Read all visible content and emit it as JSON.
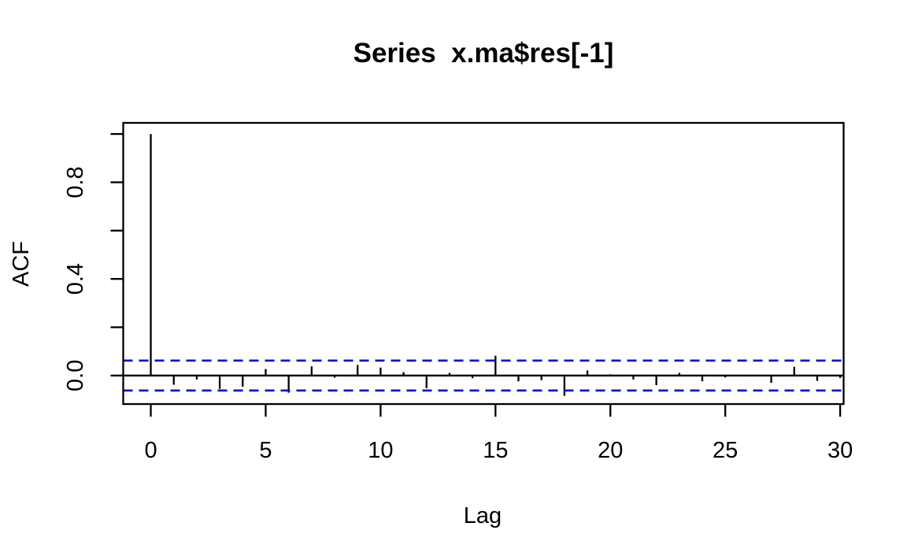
{
  "figure": {
    "background_color": "#ffffff",
    "foreground_color": "#000000"
  },
  "chart_data": {
    "type": "bar",
    "subtype": "acf-stem-plot",
    "title": "Series  x.ma$res[-1]",
    "xlabel": "Lag",
    "ylabel": "ACF",
    "x": [
      0,
      1,
      2,
      3,
      4,
      5,
      6,
      7,
      8,
      9,
      10,
      11,
      12,
      13,
      14,
      15,
      16,
      17,
      18,
      19,
      20,
      21,
      22,
      23,
      24,
      25,
      26,
      27,
      28,
      29,
      30
    ],
    "values": [
      1.0,
      -0.038,
      -0.016,
      -0.055,
      -0.046,
      0.027,
      -0.071,
      0.038,
      -0.009,
      0.044,
      0.033,
      0.014,
      -0.052,
      0.011,
      -0.011,
      0.082,
      -0.024,
      -0.019,
      -0.084,
      0.021,
      0.005,
      -0.016,
      -0.04,
      0.011,
      -0.024,
      -0.008,
      -0.004,
      -0.03,
      0.036,
      -0.022,
      -0.01
    ],
    "confidence_upper": 0.062,
    "confidence_lower": -0.062,
    "confidence_line_style": "dashed",
    "confidence_line_color": "#0000ee",
    "stem_color": "#000000",
    "xlim": [
      -1.2,
      30.15
    ],
    "ylim": [
      -0.118,
      1.046
    ],
    "x_ticks": [
      {
        "v": 0,
        "label": "0"
      },
      {
        "v": 5,
        "label": "5"
      },
      {
        "v": 10,
        "label": "10"
      },
      {
        "v": 15,
        "label": "15"
      },
      {
        "v": 20,
        "label": "20"
      },
      {
        "v": 25,
        "label": "25"
      },
      {
        "v": 30,
        "label": "30"
      }
    ],
    "y_ticks": [
      {
        "v": 0.0,
        "label": "0.0"
      },
      {
        "v": 0.2,
        "label": ""
      },
      {
        "v": 0.4,
        "label": "0.4"
      },
      {
        "v": 0.6,
        "label": ""
      },
      {
        "v": 0.8,
        "label": "0.8"
      },
      {
        "v": 1.0,
        "label": ""
      }
    ],
    "grid": false,
    "legend": null
  }
}
